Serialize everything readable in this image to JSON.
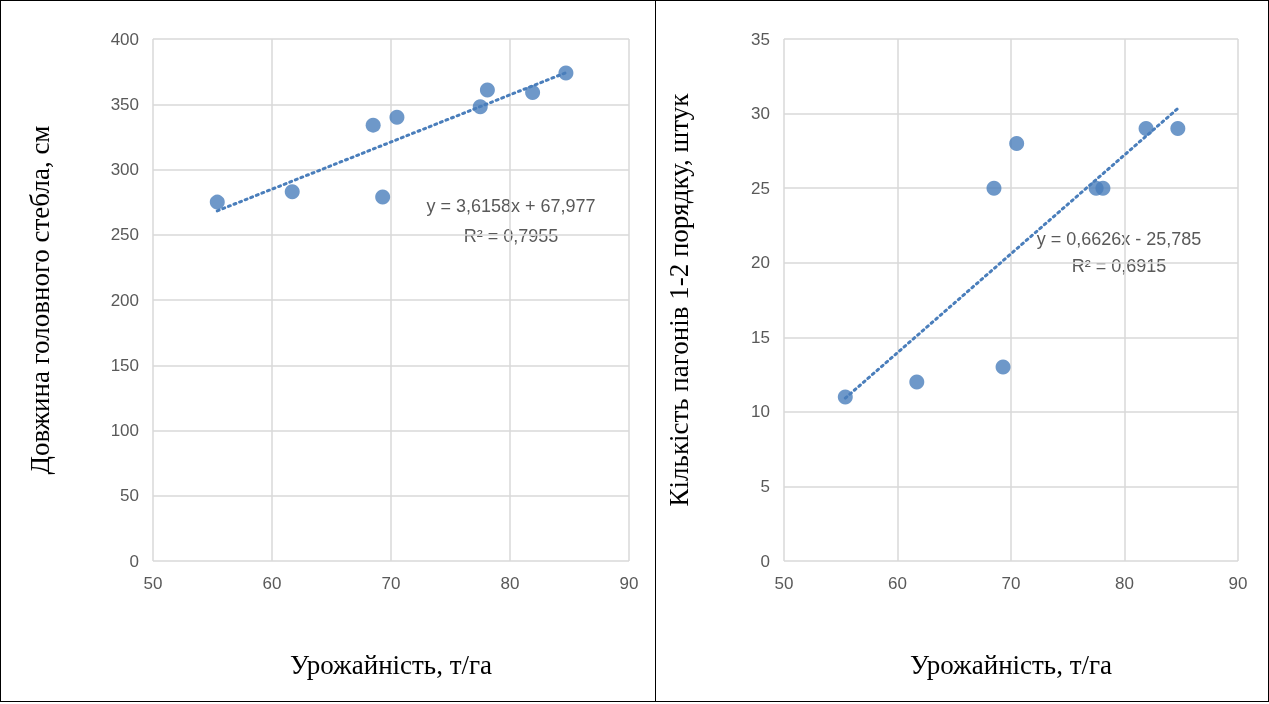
{
  "chart_data": [
    {
      "type": "scatter",
      "xlabel": "Урожайність, т/га",
      "ylabel": "Довжина головного стебла, см",
      "x": [
        55.4,
        61.7,
        68.5,
        69.3,
        70.5,
        77.5,
        78.1,
        81.9,
        84.7
      ],
      "xlim": [
        50,
        90
      ],
      "xticks": [
        50,
        60,
        70,
        80,
        90
      ],
      "ylim": [
        0,
        400
      ],
      "yticks": [
        0,
        50,
        100,
        150,
        200,
        250,
        300,
        350,
        400
      ],
      "grid": true,
      "marker": "circle",
      "annotations": [
        "y = 3,6158x + 67,977",
        "R² = 0,7955"
      ],
      "series": [
        {
          "type": "scatter",
          "color": "#4a7ebb",
          "values": [
            275,
            283,
            334,
            279,
            340,
            348,
            361,
            359,
            374
          ]
        },
        {
          "type": "line",
          "color": "#4a7ebb",
          "x": [
            55.4,
            70,
            84.7
          ],
          "values": [
            268.3,
            321.1,
            374.2
          ],
          "line_style": "dotted",
          "marker": "none"
        }
      ]
    },
    {
      "type": "scatter",
      "xlabel": "Урожайність, т/га",
      "ylabel": "Кількість пагонів 1-2 порядку, штук",
      "x": [
        55.4,
        61.7,
        68.5,
        69.3,
        70.5,
        77.5,
        78.1,
        81.9,
        84.7
      ],
      "xlim": [
        50,
        90
      ],
      "xticks": [
        50,
        60,
        70,
        80,
        90
      ],
      "ylim": [
        0,
        35
      ],
      "yticks": [
        0,
        5,
        10,
        15,
        20,
        25,
        30,
        35
      ],
      "grid": true,
      "marker": "circle",
      "annotations": [
        "y = 0,6626x - 25,785",
        "R² = 0,6915"
      ],
      "series": [
        {
          "type": "scatter",
          "color": "#4a7ebb",
          "values": [
            11,
            12,
            25,
            13,
            28,
            25,
            25,
            29,
            29
          ]
        },
        {
          "type": "line",
          "color": "#4a7ebb",
          "x": [
            55.4,
            70,
            84.7
          ],
          "values": [
            10.92,
            20.6,
            30.34
          ],
          "line_style": "dotted",
          "marker": "none"
        }
      ]
    }
  ]
}
